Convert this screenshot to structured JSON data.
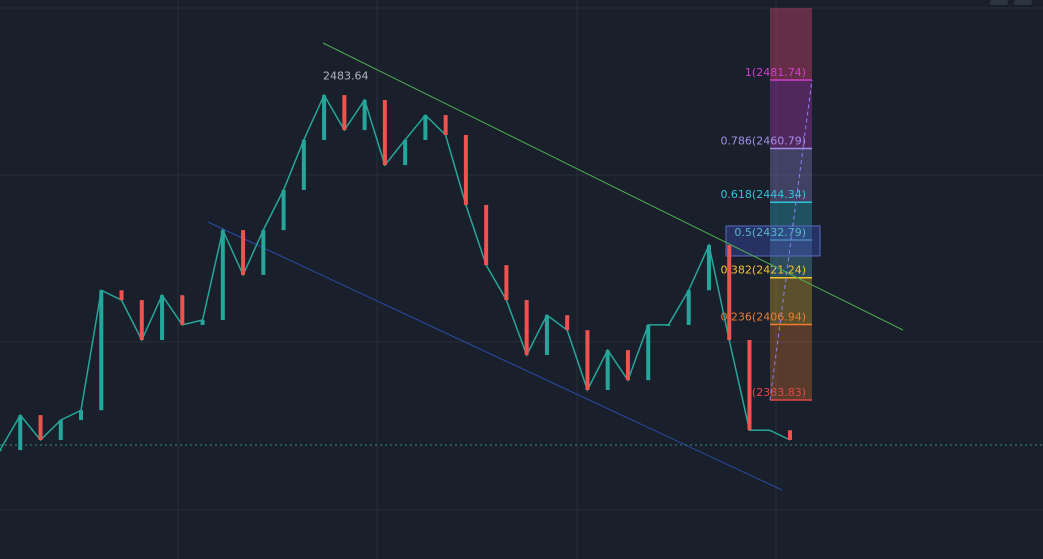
{
  "chart_data": {
    "type": "line",
    "high_label": "2483.64",
    "high_value": 2483.64,
    "ylim": [
      2335.2,
      2506.2
    ],
    "series": [
      {
        "color": "#26a69a",
        "values": [
          2368.5,
          2379.2,
          2371.6,
          2377.7,
          2380.7,
          2417.4,
          2414.4,
          2402.2,
          2415.9,
          2406.8,
          2408.3,
          2435.8,
          2422.1,
          2435.8,
          2448.1,
          2463.4,
          2477.1,
          2466.4,
          2475.6,
          2455.7,
          2463.4,
          2471.0,
          2464.9,
          2443.5,
          2425.1,
          2414.4,
          2397.6,
          2409.8,
          2405.2,
          2386.9,
          2399.1,
          2389.9,
          2406.8,
          2406.8,
          2417.4,
          2431.2,
          2402.2,
          2374.6,
          2374.6,
          2371.6
        ]
      }
    ],
    "fib_levels": [
      {
        "label": "1(2481.74)",
        "value": 2481.74,
        "color": "#d33cd0"
      },
      {
        "label": "0.786(2460.79)",
        "value": 2460.79,
        "color": "#a08fe6"
      },
      {
        "label": "0.618(2444.34)",
        "value": 2444.34,
        "color": "#2ec4da"
      },
      {
        "label": "0.5(2432.79)",
        "value": 2432.79,
        "color": "#5ab4cc"
      },
      {
        "label": "0.382(2421.24)",
        "value": 2421.24,
        "color": "#f2c230"
      },
      {
        "label": "0.236(2406.94)",
        "value": 2406.94,
        "color": "#f07a2e"
      },
      {
        "label": "(2383.83)",
        "value": 2383.83,
        "color": "#e04848"
      }
    ]
  }
}
